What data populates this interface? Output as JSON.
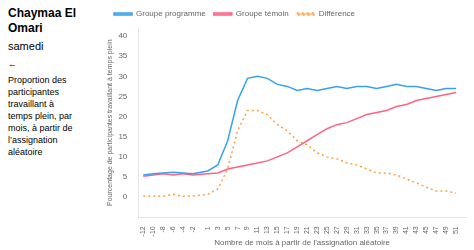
{
  "chart_data": {
    "type": "line",
    "title": "Chaymaa El Omari",
    "subtitle": "samedi",
    "annotations": [
      "←",
      "Proportion des\nparticipantes\ntravaillant à\ntemps plein, par\nmois, à partir de\nl’assignation\naléatoire"
    ],
    "xlabel": "Nombre de mois à partir de l'assignation aléatoire",
    "ylabel": "Pourcentage de participantes travaillant à temps plein",
    "x": [
      -12,
      -10,
      -8,
      -6,
      -4,
      -2,
      1,
      3,
      5,
      7,
      9,
      11,
      13,
      15,
      17,
      19,
      21,
      23,
      25,
      27,
      29,
      31,
      33,
      35,
      37,
      39,
      41,
      43,
      45,
      47,
      49,
      51
    ],
    "series": [
      {
        "name": "Groupe programme",
        "values": [
          5.5,
          5.8,
          6.0,
          6.2,
          6.0,
          5.8,
          6.5,
          8.0,
          14.0,
          24.0,
          29.5,
          30.0,
          29.5,
          28.0,
          27.5,
          26.5,
          27.0,
          26.5,
          27.0,
          27.5,
          27.0,
          27.5,
          27.5,
          27.0,
          27.5,
          28.0,
          27.5,
          27.5,
          27.0,
          26.5,
          27.0,
          27.0
        ]
      },
      {
        "name": "Groupe témoin",
        "values": [
          5.2,
          5.5,
          5.8,
          5.5,
          5.8,
          5.5,
          5.8,
          6.0,
          7.0,
          7.5,
          8.0,
          8.5,
          9.0,
          10.0,
          11.0,
          12.5,
          14.0,
          15.5,
          17.0,
          18.0,
          18.5,
          19.5,
          20.5,
          21.0,
          21.5,
          22.5,
          23.0,
          24.0,
          24.5,
          25.0,
          25.5,
          26.0
        ]
      },
      {
        "name": "Différence",
        "line_style": "dotted",
        "values": [
          0.3,
          0.3,
          0.2,
          0.7,
          0.2,
          0.3,
          0.7,
          2.0,
          7.0,
          16.5,
          21.5,
          21.5,
          20.5,
          18.0,
          16.5,
          14.0,
          13.0,
          11.0,
          10.0,
          9.5,
          8.5,
          8.0,
          7.0,
          6.0,
          6.0,
          5.5,
          4.5,
          3.5,
          2.5,
          1.5,
          1.5,
          1.0
        ]
      }
    ],
    "xlim": [
      -13,
      53
    ],
    "ylim": [
      -5,
      42
    ],
    "xticks": [
      -12,
      -10,
      -8,
      -6,
      -4,
      -2,
      1,
      3,
      5,
      7,
      9,
      11,
      13,
      15,
      17,
      19,
      21,
      23,
      25,
      27,
      29,
      31,
      33,
      35,
      37,
      39,
      41,
      43,
      45,
      47,
      49,
      51
    ],
    "yticks": [
      0,
      5,
      10,
      15,
      20,
      25,
      30,
      35,
      40
    ],
    "grid": false,
    "legend": "top"
  }
}
